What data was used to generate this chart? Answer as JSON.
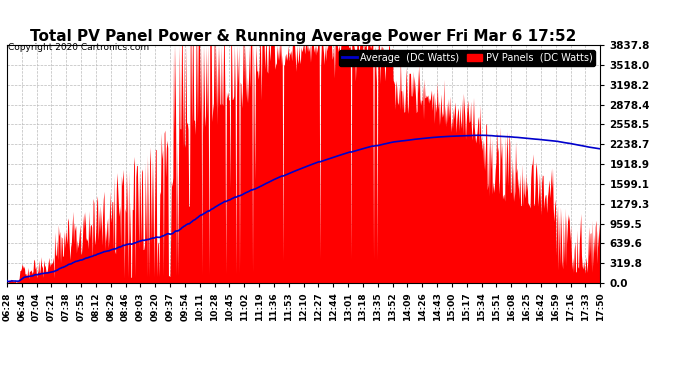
{
  "title": "Total PV Panel Power & Running Average Power Fri Mar 6 17:52",
  "copyright": "Copyright 2020 Cartronics.com",
  "legend_avg": "Average  (DC Watts)",
  "legend_pv": "PV Panels  (DC Watts)",
  "yticks": [
    0.0,
    319.8,
    639.6,
    959.5,
    1279.3,
    1599.1,
    1918.9,
    2238.7,
    2558.5,
    2878.4,
    3198.2,
    3518.0,
    3837.8
  ],
  "ymax": 3837.8,
  "ymin": 0.0,
  "background_color": "#ffffff",
  "plot_bg_color": "#ffffff",
  "grid_color": "#bbbbbb",
  "pv_color": "#ff0000",
  "avg_color": "#0000cc",
  "title_fontsize": 11,
  "xtick_labels": [
    "06:28",
    "06:45",
    "07:04",
    "07:21",
    "07:38",
    "07:55",
    "08:12",
    "08:29",
    "08:46",
    "09:03",
    "09:20",
    "09:37",
    "09:54",
    "10:11",
    "10:28",
    "10:45",
    "11:02",
    "11:19",
    "11:36",
    "11:53",
    "12:10",
    "12:27",
    "12:44",
    "13:01",
    "13:18",
    "13:35",
    "13:52",
    "14:09",
    "14:26",
    "14:43",
    "15:00",
    "15:17",
    "15:34",
    "15:51",
    "16:08",
    "16:25",
    "16:42",
    "16:59",
    "17:16",
    "17:33",
    "17:50"
  ]
}
